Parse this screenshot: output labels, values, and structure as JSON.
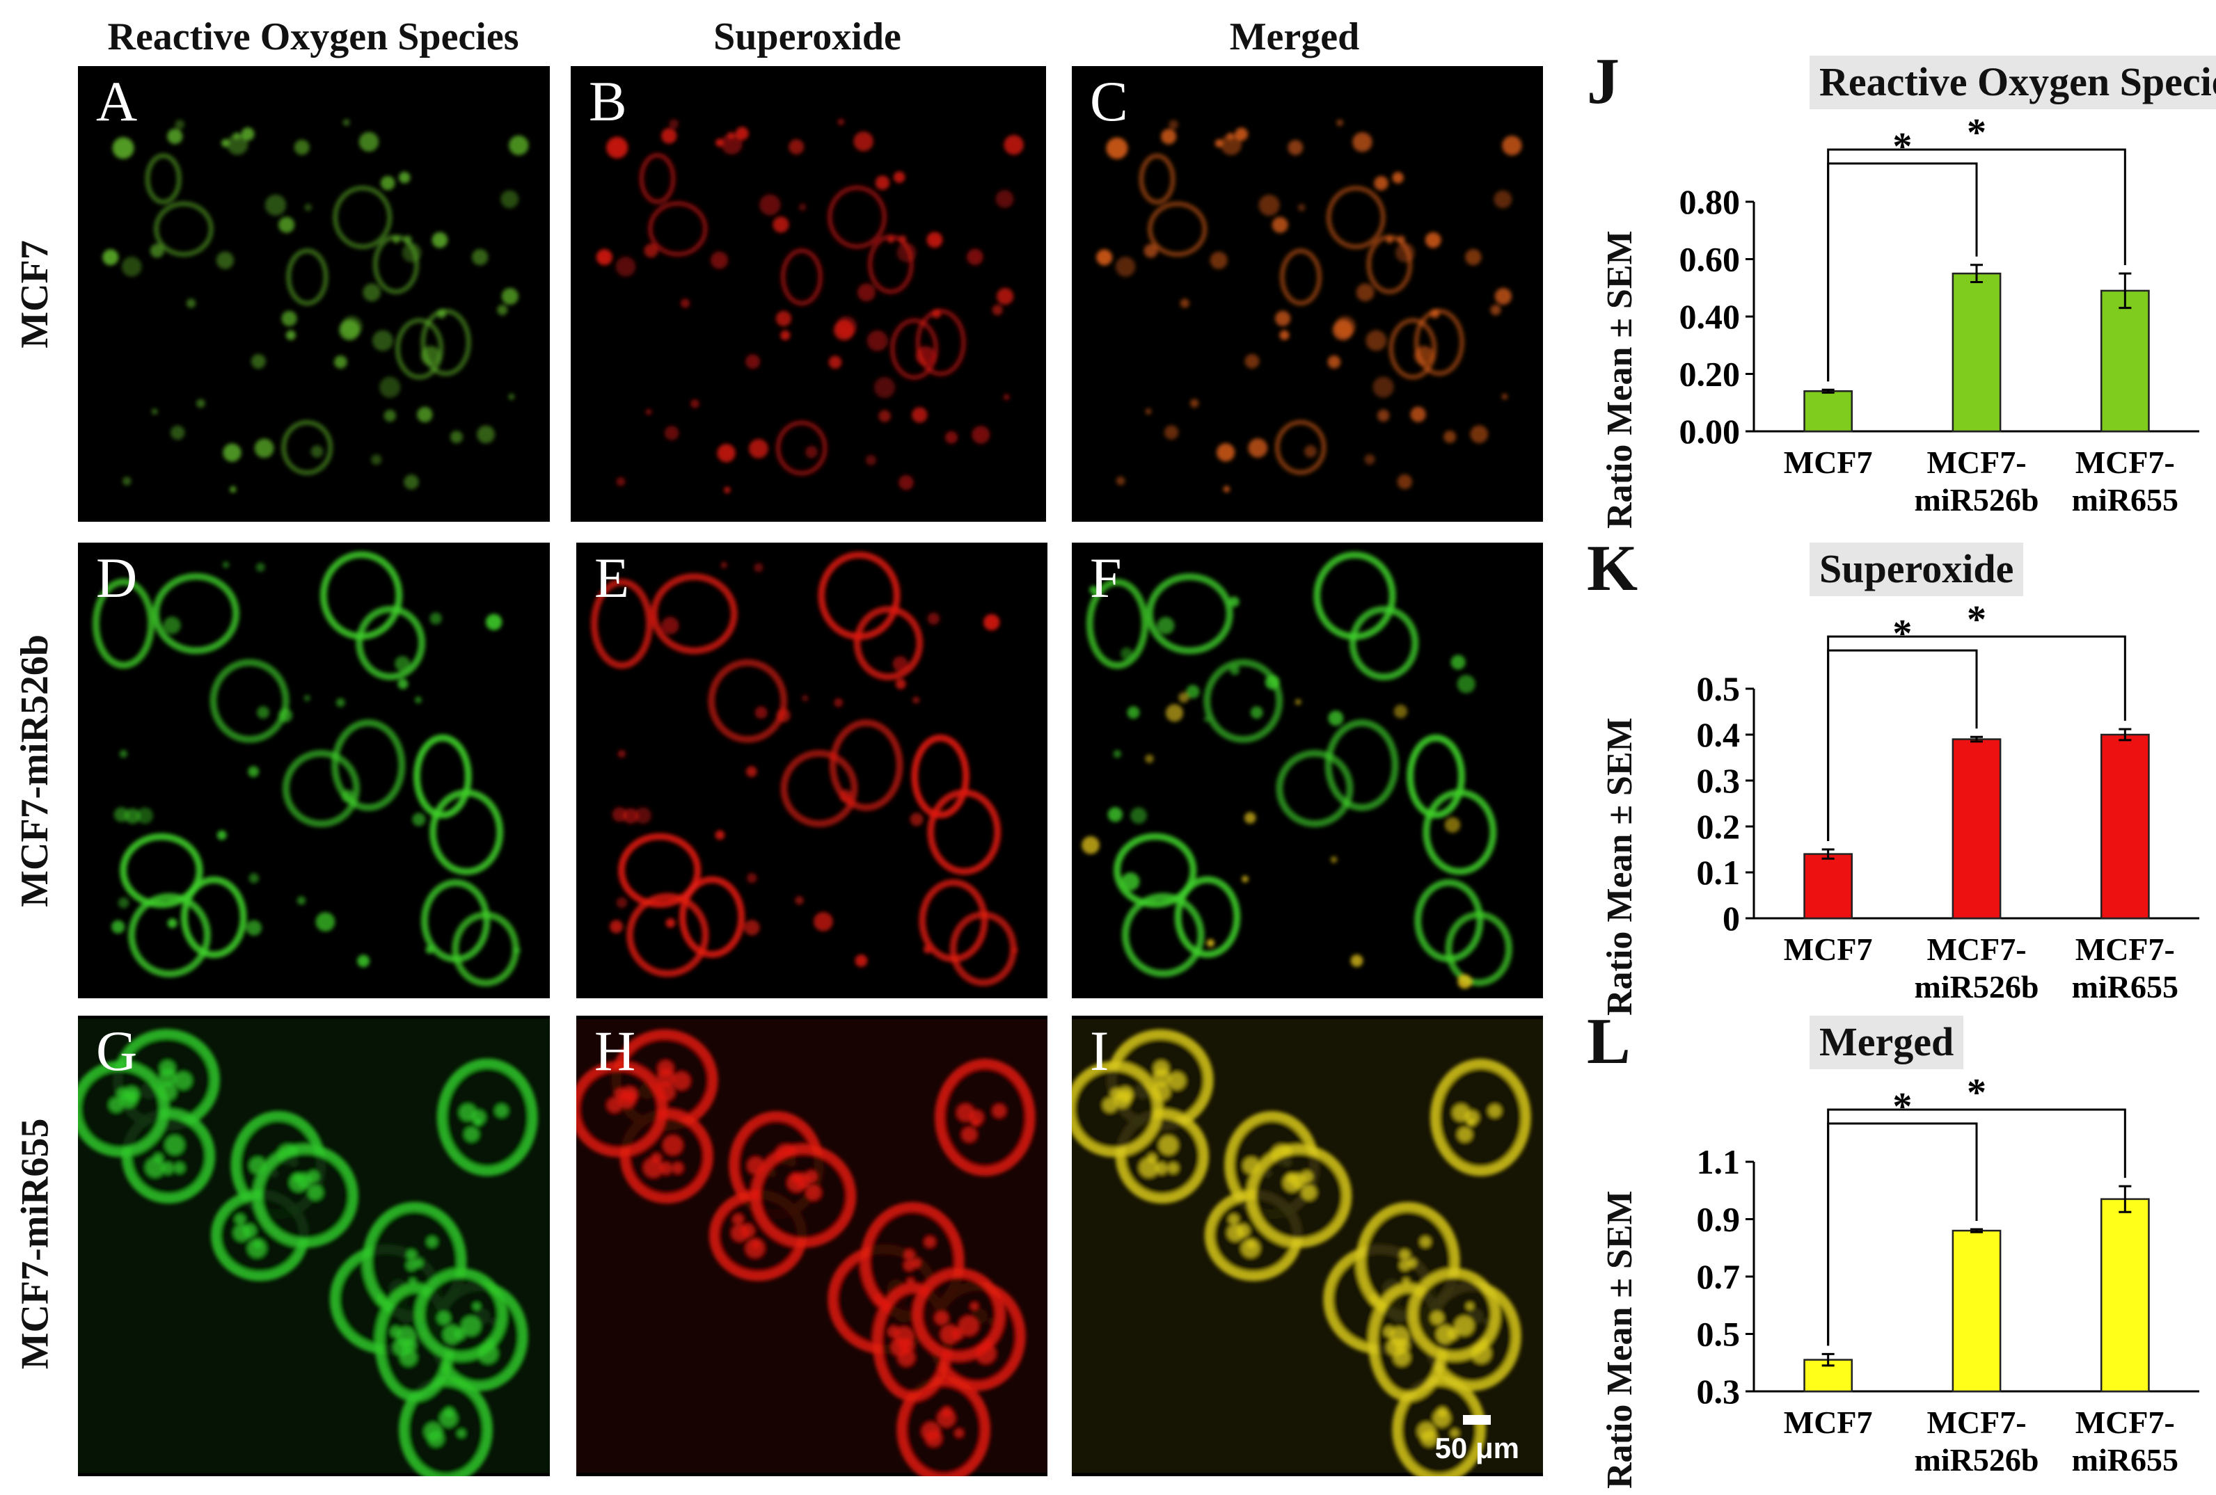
{
  "columns": [
    "Reactive Oxygen Species",
    "Superoxide",
    "Merged"
  ],
  "rows": [
    "MCF7",
    "MCF7-miR526b",
    "MCF7-miR655"
  ],
  "panel_letters": [
    "A",
    "B",
    "C",
    "D",
    "E",
    "F",
    "G",
    "H",
    "I"
  ],
  "scale_bar": "50 μm",
  "charts": [
    {
      "letter": "J",
      "title": "Reactive Oxygen Species",
      "ylabel": "Ratio Mean ± SEM",
      "bar_color": "#7fcc1f",
      "ylim": [
        0,
        0.8
      ],
      "ticks": [
        "0.00",
        "0.20",
        "0.40",
        "0.60",
        "0.80"
      ],
      "categories": [
        [
          "MCF7"
        ],
        [
          "MCF7-",
          "miR526b"
        ],
        [
          "MCF7-",
          "miR655"
        ]
      ],
      "values": [
        0.14,
        0.55,
        0.49
      ],
      "errors": [
        0.005,
        0.03,
        0.06
      ],
      "significance": [
        {
          "from": 0,
          "to": 1,
          "mark": "*"
        },
        {
          "from": 0,
          "to": 2,
          "mark": "*"
        }
      ]
    },
    {
      "letter": "K",
      "title": "Superoxide",
      "ylabel": "Ratio Mean ± SEM",
      "bar_color": "#ee1111",
      "ylim": [
        0,
        0.5
      ],
      "ticks": [
        "0",
        "0.1",
        "0.2",
        "0.3",
        "0.4",
        "0.5"
      ],
      "categories": [
        [
          "MCF7"
        ],
        [
          "MCF7-",
          "miR526b"
        ],
        [
          "MCF7-",
          "miR655"
        ]
      ],
      "values": [
        0.14,
        0.39,
        0.4
      ],
      "errors": [
        0.01,
        0.005,
        0.012
      ],
      "significance": [
        {
          "from": 0,
          "to": 1,
          "mark": "*"
        },
        {
          "from": 0,
          "to": 2,
          "mark": "*"
        }
      ]
    },
    {
      "letter": "L",
      "title": "Merged",
      "ylabel": "Ratio Mean ± SEM",
      "bar_color": "#ffff1a",
      "ylim": [
        0.3,
        1.1
      ],
      "ticks": [
        "0.3",
        "0.5",
        "0.7",
        "0.9",
        "1.1"
      ],
      "categories": [
        [
          "MCF7"
        ],
        [
          "MCF7-",
          "miR526b"
        ],
        [
          "MCF7-",
          "miR655"
        ]
      ],
      "values": [
        0.41,
        0.86,
        0.97
      ],
      "errors": [
        0.02,
        0.005,
        0.045
      ],
      "significance": [
        {
          "from": 0,
          "to": 1,
          "mark": "*"
        },
        {
          "from": 0,
          "to": 2,
          "mark": "*"
        }
      ]
    }
  ],
  "chart_data": [
    {
      "type": "bar",
      "title": "Reactive Oxygen Species",
      "ylabel": "Ratio Mean ± SEM",
      "categories": [
        "MCF7",
        "MCF7-miR526b",
        "MCF7-miR655"
      ],
      "values": [
        0.14,
        0.55,
        0.49
      ],
      "error": [
        0.005,
        0.03,
        0.06
      ],
      "ylim": [
        0,
        0.8
      ],
      "grid": false
    },
    {
      "type": "bar",
      "title": "Superoxide",
      "ylabel": "Ratio Mean ± SEM",
      "categories": [
        "MCF7",
        "MCF7-miR526b",
        "MCF7-miR655"
      ],
      "values": [
        0.14,
        0.39,
        0.4
      ],
      "error": [
        0.01,
        0.005,
        0.012
      ],
      "ylim": [
        0,
        0.5
      ],
      "grid": false
    },
    {
      "type": "bar",
      "title": "Merged",
      "ylabel": "Ratio Mean ± SEM",
      "categories": [
        "MCF7",
        "MCF7-miR526b",
        "MCF7-miR655"
      ],
      "values": [
        0.41,
        0.86,
        0.97
      ],
      "error": [
        0.02,
        0.005,
        0.045
      ],
      "ylim": [
        0.3,
        1.1
      ],
      "grid": false
    }
  ]
}
